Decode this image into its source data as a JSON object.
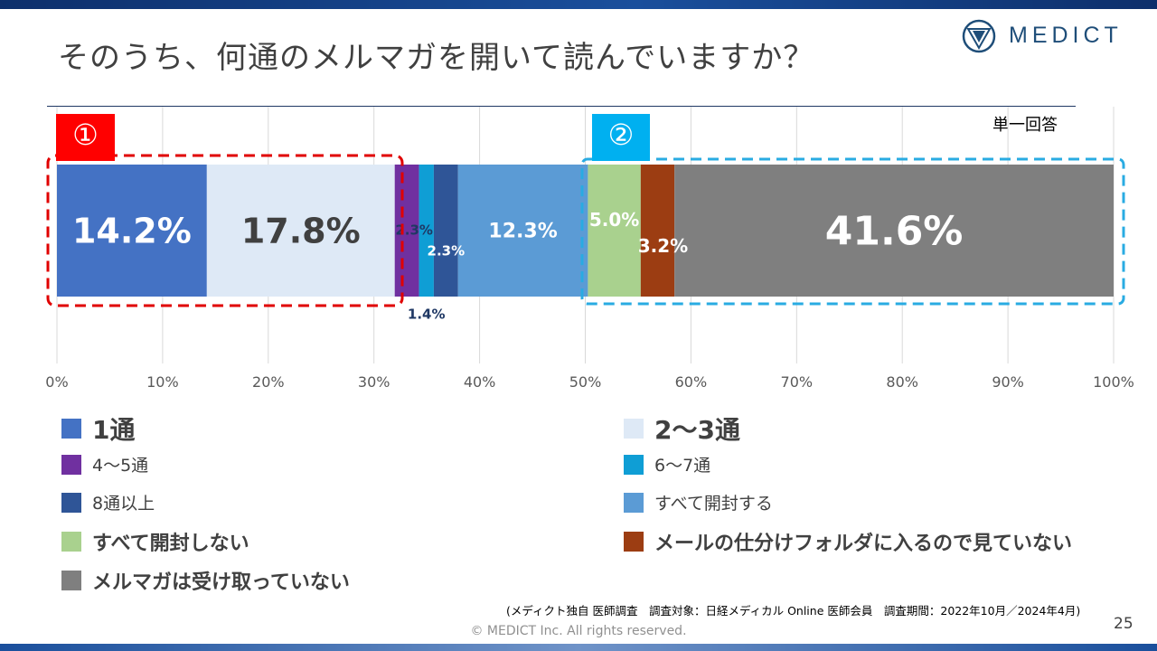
{
  "slide": {
    "title": "そのうち、何通のメルマガを開いて読んでいますか？",
    "logo_text": "MEDICT",
    "unit_label": "単一回答",
    "badge_1": "①",
    "badge_2": "②",
    "source": "(メディクト独自 医師調査　調査対象：日経メディカル Online 医師会員　調査期間：2022年10月／2024年4月)",
    "page_number": "25",
    "copyright": "© MEDICT Inc.  All rights reserved."
  },
  "colors": {
    "group1_box": "#e00000",
    "group2_box": "#29abe2",
    "gridline": "#d9d9d9"
  },
  "chart_data": {
    "type": "bar",
    "orientation": "horizontal-stacked-100",
    "xlim": [
      0,
      100
    ],
    "x_ticks": [
      "0%",
      "10%",
      "20%",
      "30%",
      "40%",
      "50%",
      "60%",
      "70%",
      "80%",
      "90%",
      "100%"
    ],
    "grid": true,
    "legend_position": "bottom",
    "series": [
      {
        "name": "1通",
        "value": 14.2,
        "label": "14.2%",
        "color": "#4472c4"
      },
      {
        "name": "2～3通",
        "value": 17.8,
        "label": "17.8%",
        "color": "#dee9f6"
      },
      {
        "name": "4～5通",
        "value": 2.3,
        "label": "2.3%",
        "color": "#7030a0"
      },
      {
        "name": "6～7通",
        "value": 1.4,
        "label": "1.4%",
        "color": "#0f9ed5"
      },
      {
        "name": "8通以上",
        "value": 2.3,
        "label": "2.3%",
        "color": "#2f5597"
      },
      {
        "name": "すべて開封する",
        "value": 12.3,
        "label": "12.3%",
        "color": "#5b9bd5"
      },
      {
        "name": "すべて開封しない",
        "value": 5.0,
        "label": "5.0%",
        "color": "#a9d18e"
      },
      {
        "name": "メールの仕分けフォルダに入るので見ていない",
        "value": 3.2,
        "label": "3.2%",
        "color": "#9c3d12"
      },
      {
        "name": "メルマガは受け取っていない",
        "value": 41.6,
        "label": "41.6%",
        "color": "#7f7f7f"
      }
    ]
  }
}
